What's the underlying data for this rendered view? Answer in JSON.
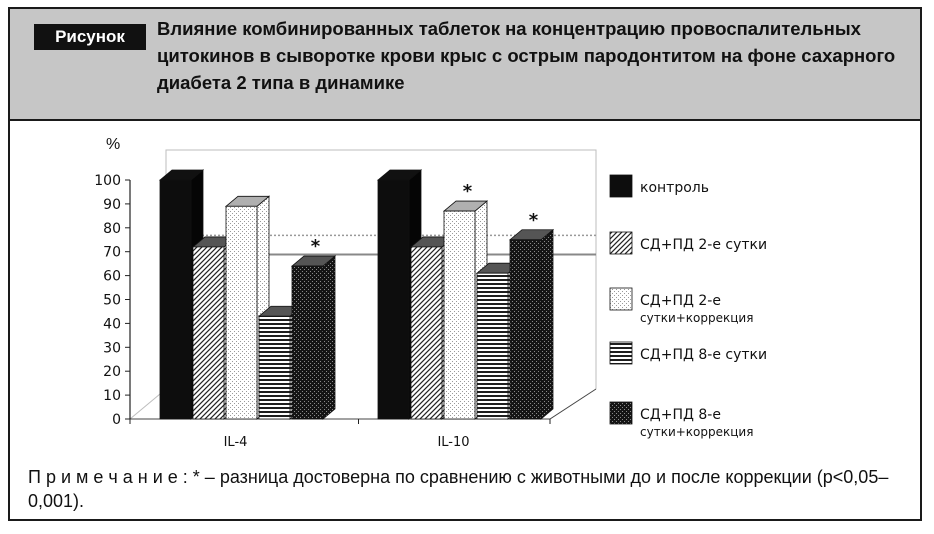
{
  "figure": {
    "badge": "Рисунок",
    "title": "Влияние комбинированных таблеток на концентрацию провоспалительных цитокинов в сыворотке крови крыс с острым пародонтитом на фоне сахарного диабета 2 типа в динамике",
    "note_prefix": "П р и м е ч а н и е :",
    "note_text": " * – разница достоверна по сравнению с животными до и после коррекции (p<0,05–0,001)."
  },
  "chart_data": {
    "type": "bar",
    "ylabel": "%",
    "ylim": [
      0,
      100
    ],
    "yticks": [
      "0",
      "10",
      "20",
      "30",
      "40",
      "50",
      "60",
      "70",
      "80",
      "90",
      "100"
    ],
    "categories": [
      "IL-4",
      "IL-10"
    ],
    "series": [
      {
        "name": "контроль",
        "values": [
          100,
          100
        ],
        "pattern": "solid",
        "stars": [
          false,
          false
        ]
      },
      {
        "name": "СД+ПД 2-е сутки",
        "values": [
          72,
          72
        ],
        "pattern": "diag",
        "stars": [
          false,
          false
        ]
      },
      {
        "name": "СД+ПД 2-е сутки+коррекция",
        "values": [
          89,
          87
        ],
        "pattern": "dots",
        "stars": [
          false,
          true
        ]
      },
      {
        "name": "СД+ПД 8-е сутки",
        "values": [
          43,
          61
        ],
        "pattern": "hstripes",
        "stars": [
          false,
          false
        ]
      },
      {
        "name": "СД+ПД 8-е сутки+коррекция",
        "values": [
          64,
          75
        ],
        "pattern": "checker",
        "stars": [
          true,
          true
        ]
      }
    ],
    "legend_lines": [
      [
        "контроль"
      ],
      [
        "СД+ПД 2-е  сутки"
      ],
      [
        "СД+ПД 2-е",
        "сутки+коррекция"
      ],
      [
        "СД+ПД 8-е  сутки"
      ],
      [
        "СД+ПД 8-е",
        "сутки+коррекция"
      ]
    ],
    "reference_lines": [
      76,
      68
    ],
    "star_mark": "*",
    "legend_position": "right",
    "grid": false
  }
}
